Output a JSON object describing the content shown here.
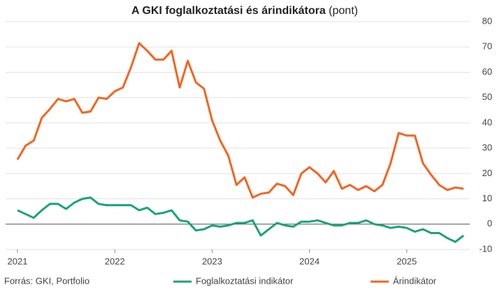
{
  "chart_data": {
    "type": "line",
    "title": "A GKI foglalkoztatási és árindikátora",
    "unit": "(pont)",
    "source": "Forrás: GKI, Portfolio",
    "categories": [
      "2021",
      null,
      null,
      null,
      null,
      null,
      null,
      null,
      null,
      null,
      null,
      null,
      "2022",
      null,
      null,
      null,
      null,
      null,
      null,
      null,
      null,
      null,
      null,
      null,
      "2023",
      null,
      null,
      null,
      null,
      null,
      null,
      null,
      null,
      null,
      null,
      null,
      "2024",
      null,
      null,
      null,
      null,
      null,
      null,
      null,
      null,
      null,
      null,
      null,
      "2025",
      null,
      null,
      null,
      null,
      null,
      null,
      null
    ],
    "series": [
      {
        "name": "Foglalkoztatási indikátor",
        "color": "#1aa37a",
        "values": [
          5.5,
          4,
          2.5,
          5.5,
          8,
          8,
          6,
          8.5,
          10,
          10.5,
          8,
          7.5,
          7.5,
          7.5,
          7.5,
          5.5,
          6.5,
          4,
          4.5,
          5.5,
          1.5,
          1,
          -2.5,
          -2,
          -0.5,
          -1,
          -0.5,
          0.5,
          0.5,
          1.5,
          -4.5,
          -2,
          0.5,
          -0.5,
          -1,
          1,
          1,
          1.5,
          0.5,
          -0.5,
          -0.5,
          0.5,
          0.5,
          1.5,
          0,
          -0.5,
          -1.5,
          -1,
          -1.5,
          -3,
          -2,
          -3.5,
          -3.5,
          -5.5,
          -7,
          -4.5
        ]
      },
      {
        "name": "Árindikátor",
        "color": "#f26522",
        "values": [
          25.5,
          31,
          33,
          42,
          45.5,
          49.5,
          48.5,
          49.5,
          44,
          44.5,
          50,
          49.5,
          52.5,
          54,
          62,
          71.5,
          68.5,
          65,
          65,
          68.5,
          54,
          64.5,
          56,
          53.5,
          41,
          33,
          27,
          15.5,
          18.5,
          10.5,
          12,
          12.5,
          16,
          15,
          11.5,
          20,
          22.5,
          20,
          16.5,
          21,
          14,
          15.5,
          13.5,
          15,
          13,
          15.5,
          24,
          36,
          35,
          35,
          24,
          19.5,
          15.5,
          13.5,
          14.5,
          14
        ]
      }
    ],
    "ylim": [
      -10,
      80
    ],
    "yticks": [
      -10,
      0,
      10,
      20,
      30,
      40,
      50,
      60,
      70,
      80
    ],
    "grid": true
  }
}
